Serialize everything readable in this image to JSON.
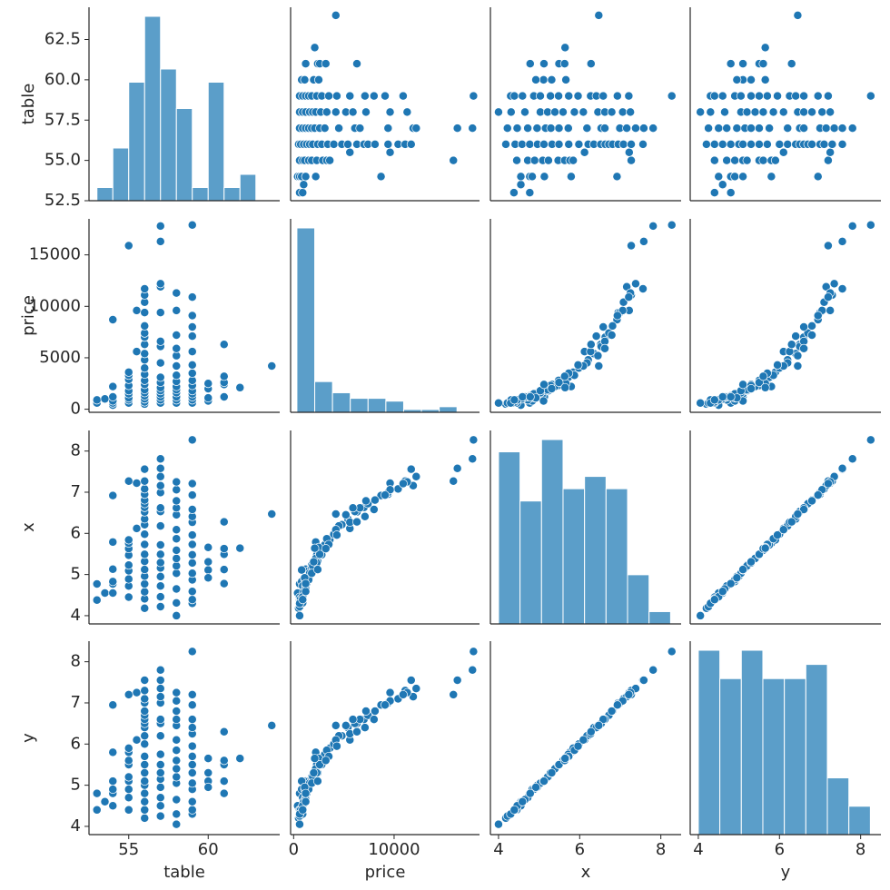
{
  "chart_data": {
    "type": "scatter",
    "variables": [
      "table",
      "price",
      "x",
      "y"
    ],
    "colors": {
      "points": "#1f77b4",
      "bars": "#5b9ec9"
    },
    "axes": {
      "table": {
        "lim": [
          52.5,
          64.5
        ],
        "ticks": [
          52.5,
          55.0,
          57.5,
          60.0,
          62.5
        ],
        "tick_labels": [
          "52.5",
          "55.0",
          "57.5",
          "60.0",
          "62.5"
        ],
        "xticks": [
          55,
          60
        ],
        "xtick_labels": [
          "55",
          "60"
        ]
      },
      "price": {
        "lim": [
          -300,
          18500
        ],
        "ticks": [
          0,
          5000,
          10000,
          15000
        ],
        "tick_labels": [
          "0",
          "5000",
          "10000",
          "15000"
        ],
        "xticks": [
          0,
          10000
        ],
        "xtick_labels": [
          "0",
          "10000"
        ]
      },
      "x": {
        "lim": [
          3.8,
          8.5
        ],
        "ticks": [
          4,
          5,
          6,
          7,
          8
        ],
        "tick_labels": [
          "4",
          "5",
          "6",
          "7",
          "8"
        ],
        "xticks": [
          4,
          6,
          8
        ],
        "xtick_labels": [
          "4",
          "6",
          "8"
        ]
      },
      "y": {
        "lim": [
          3.8,
          8.5
        ],
        "ticks": [
          4,
          5,
          6,
          7,
          8
        ],
        "tick_labels": [
          "4",
          "5",
          "6",
          "7",
          "8"
        ],
        "xticks": [
          4,
          6,
          8
        ],
        "xtick_labels": [
          "4",
          "6",
          "8"
        ]
      }
    },
    "histograms": {
      "table": {
        "edges": [
          53.0,
          54.0,
          55.0,
          56.0,
          57.0,
          58.0,
          59.0,
          60.0,
          61.0,
          62.0,
          63.0,
          64.0
        ],
        "counts": [
          1,
          4,
          9,
          14,
          10,
          7,
          1,
          9,
          1,
          2,
          0,
          0
        ]
      },
      "price": {
        "edges": [
          326,
          2100,
          3870,
          5640,
          7410,
          9180,
          10950,
          12720,
          14490,
          16260,
          18030
        ],
        "counts": [
          66,
          11,
          7,
          5,
          5,
          4,
          1,
          1,
          2,
          0
        ]
      },
      "x": {
        "edges": [
          4.0,
          4.53,
          5.06,
          5.59,
          6.12,
          6.65,
          7.18,
          7.71,
          8.24
        ],
        "counts": [
          14,
          10,
          15,
          11,
          12,
          11,
          4,
          1
        ]
      },
      "y": {
        "edges": [
          4.0,
          4.53,
          5.06,
          5.59,
          6.12,
          6.65,
          7.18,
          7.71,
          8.24
        ],
        "counts": [
          13,
          11,
          13,
          11,
          11,
          12,
          4,
          2
        ]
      }
    },
    "points": {
      "table": [
        53,
        53,
        53.5,
        54,
        54,
        54,
        54,
        54,
        54,
        55,
        55,
        55,
        55,
        55,
        55,
        55,
        55,
        55,
        55,
        55.5,
        55.5,
        56,
        56,
        56,
        56,
        56,
        56,
        56,
        56,
        56,
        56,
        56,
        56,
        56,
        56,
        56,
        56,
        56,
        56,
        56,
        56,
        57,
        57,
        57,
        57,
        57,
        57,
        57,
        57,
        57,
        57,
        57,
        57,
        57,
        57,
        57,
        57,
        58,
        58,
        58,
        58,
        58,
        58,
        58,
        58,
        58,
        58,
        58,
        58,
        58,
        58,
        59,
        59,
        59,
        59,
        59,
        59,
        59,
        59,
        59,
        59,
        59,
        59,
        59,
        59,
        59,
        60,
        60,
        60,
        60,
        61,
        61,
        61,
        61,
        61,
        62,
        64
      ],
      "price": [
        600,
        900,
        1000,
        400,
        600,
        800,
        1200,
        2200,
        8700,
        600,
        900,
        1100,
        1500,
        1800,
        2300,
        2900,
        3300,
        3600,
        15900,
        5600,
        9600,
        500,
        700,
        1000,
        1300,
        1600,
        1900,
        2400,
        2800,
        3400,
        4000,
        4800,
        5400,
        6300,
        7000,
        7400,
        8100,
        9400,
        10400,
        11100,
        11700,
        600,
        900,
        1200,
        1500,
        1800,
        2100,
        2600,
        3100,
        4500,
        6100,
        6600,
        9400,
        11900,
        12200,
        16300,
        17800,
        600,
        900,
        1200,
        1600,
        1900,
        2200,
        2700,
        3300,
        4200,
        5200,
        5900,
        7200,
        9600,
        11300,
        600,
        900,
        1200,
        1500,
        1800,
        2300,
        2800,
        3500,
        4300,
        5600,
        7100,
        8000,
        9100,
        10900,
        17900,
        800,
        1100,
        2000,
        2500,
        1200,
        2400,
        2600,
        3200,
        6300,
        2100,
        4200
      ],
      "x": [
        4.38,
        4.77,
        4.55,
        4.55,
        4.77,
        4.83,
        5.13,
        5.79,
        6.92,
        4.45,
        4.72,
        4.89,
        5.09,
        5.23,
        5.47,
        5.63,
        5.76,
        5.84,
        7.27,
        6.12,
        7.22,
        4.18,
        4.41,
        4.58,
        4.77,
        4.96,
        5.12,
        5.32,
        5.49,
        5.73,
        5.98,
        6.21,
        6.35,
        6.52,
        6.63,
        6.72,
        6.81,
        6.95,
        7.08,
        7.27,
        7.56,
        4.22,
        4.46,
        4.72,
        4.95,
        5.16,
        5.29,
        5.49,
        5.72,
        6.18,
        6.53,
        6.62,
        6.99,
        7.16,
        7.38,
        7.58,
        7.81,
        4.0,
        4.31,
        4.65,
        5.03,
        5.21,
        5.39,
        5.59,
        5.87,
        6.09,
        6.45,
        6.62,
        6.79,
        7.06,
        7.25,
        4.3,
        4.39,
        4.59,
        4.87,
        5.03,
        5.28,
        5.48,
        5.73,
        5.96,
        6.27,
        6.41,
        6.58,
        6.93,
        7.21,
        8.27,
        5.11,
        4.92,
        5.31,
        5.66,
        4.78,
        5.12,
        5.49,
        5.63,
        6.28,
        5.64,
        6.47
      ],
      "y": [
        4.4,
        4.8,
        4.6,
        4.5,
        4.8,
        4.9,
        5.1,
        5.8,
        6.95,
        4.4,
        4.7,
        4.9,
        5.1,
        5.2,
        5.5,
        5.6,
        5.8,
        5.9,
        7.2,
        6.1,
        7.25,
        4.2,
        4.4,
        4.6,
        4.8,
        5.0,
        5.1,
        5.3,
        5.5,
        5.7,
        6.0,
        6.2,
        6.4,
        6.5,
        6.6,
        6.7,
        6.8,
        7.0,
        7.1,
        7.3,
        7.55,
        4.25,
        4.5,
        4.7,
        4.95,
        5.15,
        5.3,
        5.5,
        5.75,
        6.2,
        6.5,
        6.6,
        7.0,
        7.15,
        7.35,
        7.55,
        7.8,
        4.05,
        4.3,
        4.65,
        5.05,
        5.2,
        5.4,
        5.6,
        5.85,
        6.1,
        6.45,
        6.6,
        6.8,
        7.05,
        7.25,
        4.3,
        4.4,
        4.6,
        4.9,
        5.05,
        5.3,
        5.5,
        5.7,
        5.95,
        6.25,
        6.4,
        6.6,
        6.95,
        7.2,
        8.25,
        5.1,
        4.95,
        5.3,
        5.65,
        4.8,
        5.1,
        5.5,
        5.6,
        6.3,
        5.65,
        6.45
      ]
    }
  }
}
